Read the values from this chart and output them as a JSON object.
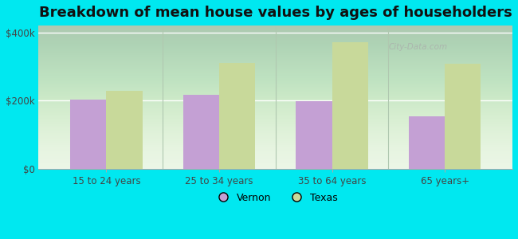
{
  "title": "Breakdown of mean house values by ages of householders",
  "categories": [
    "15 to 24 years",
    "25 to 34 years",
    "35 to 64 years",
    "65 years+"
  ],
  "vernon_values": [
    203000,
    217000,
    199000,
    155000
  ],
  "texas_values": [
    228000,
    310000,
    370000,
    308000
  ],
  "vernon_color": "#c4a0d4",
  "texas_color": "#c8d99a",
  "background_color": "#00e8f0",
  "plot_bg_color": "#e8f5e2",
  "ylim": [
    0,
    420000
  ],
  "yticks": [
    0,
    200000,
    400000
  ],
  "ytick_labels": [
    "$0",
    "$200k",
    "$400k"
  ],
  "bar_width": 0.32,
  "title_fontsize": 13,
  "legend_labels": [
    "Vernon",
    "Texas"
  ],
  "watermark": "City-Data.com",
  "sep_color": "#b0c8b0",
  "fig_width": 6.5,
  "fig_height": 3.0
}
